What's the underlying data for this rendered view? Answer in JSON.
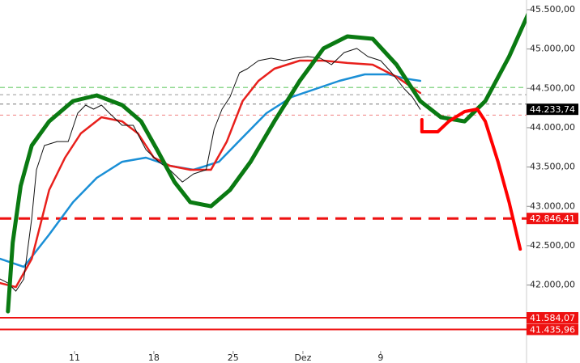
{
  "chart_data": {
    "type": "line",
    "xlim": [
      0,
      33.2
    ],
    "ylim": [
      41009,
      45623
    ],
    "xticks": [
      {
        "value": 4.7,
        "label": "11"
      },
      {
        "value": 9.7,
        "label": "18"
      },
      {
        "value": 14.7,
        "label": "25"
      },
      {
        "value": 19.1,
        "label": "Dez"
      },
      {
        "value": 24.0,
        "label": "9"
      }
    ],
    "yticks": [
      {
        "value": 45500,
        "label": "45.500,00"
      },
      {
        "value": 45000,
        "label": "45.000,00"
      },
      {
        "value": 44500,
        "label": "44.500,00"
      },
      {
        "value": 44000,
        "label": "44.000,00"
      },
      {
        "value": 43500,
        "label": "43.500,00"
      },
      {
        "value": 43000,
        "label": "43.000,00"
      },
      {
        "value": 42500,
        "label": "42.500,00"
      },
      {
        "value": 42000,
        "label": "42.000,00"
      }
    ],
    "levels": [
      {
        "value": 44510,
        "color": "#8fd88f",
        "width": 1.5,
        "dash": "6,4"
      },
      {
        "value": 44420,
        "color": "#999999",
        "width": 1,
        "dash": "4,4"
      },
      {
        "value": 44300,
        "color": "#777777",
        "width": 1,
        "dash": "4,4"
      },
      {
        "value": 44160,
        "color": "#f08080",
        "width": 1,
        "dash": "4,4"
      },
      {
        "value": 42846.41,
        "label": "42.846,41",
        "color": "#ee1111",
        "width": 3,
        "dash": "14,9"
      },
      {
        "value": 41584.07,
        "label": "41.584,07",
        "color": "#ee1111",
        "width": 2
      },
      {
        "value": 41435.96,
        "label": "41.435,96",
        "color": "#ee1111",
        "width": 2
      },
      {
        "value": 44233.74,
        "label": "44.233,74",
        "color": "#000000",
        "width": 0
      }
    ],
    "series": [
      {
        "color": "#1a8fd6",
        "width": 2.5,
        "x": [
          0,
          1.5,
          3.1,
          4.6,
          6.1,
          7.7,
          9.2,
          10.7,
          12.2,
          13.8,
          15.3,
          16.8,
          18.4,
          19.9,
          21.4,
          23.0,
          24.5,
          25.5,
          26.5
        ],
        "values": [
          42334,
          42231,
          42642,
          43053,
          43362,
          43567,
          43619,
          43516,
          43465,
          43567,
          43876,
          44184,
          44390,
          44493,
          44595,
          44678,
          44678,
          44626,
          44595
        ]
      },
      {
        "color": "#e8201c",
        "width": 2.5,
        "x": [
          0,
          1.0,
          2.0,
          3.1,
          4.1,
          5.1,
          6.4,
          7.7,
          8.7,
          9.7,
          10.7,
          12.0,
          13.3,
          14.3,
          15.3,
          16.3,
          17.3,
          18.9,
          20.4,
          21.9,
          23.5,
          25.0,
          26.5
        ],
        "values": [
          42025,
          41974,
          42334,
          43208,
          43619,
          43927,
          44133,
          44081,
          43927,
          43619,
          43516,
          43465,
          43465,
          43824,
          44338,
          44595,
          44750,
          44852,
          44852,
          44822,
          44801,
          44647,
          44441
        ]
      },
      {
        "color": "#111111",
        "width": 1,
        "x": [
          0,
          0.5,
          1.0,
          1.5,
          2.0,
          2.3,
          2.8,
          3.6,
          4.3,
          4.9,
          5.4,
          5.9,
          6.4,
          6.9,
          7.7,
          8.4,
          9.2,
          10.0,
          10.7,
          11.5,
          12.2,
          13.0,
          13.5,
          14.0,
          14.5,
          15.1,
          15.6,
          16.3,
          17.1,
          17.9,
          18.6,
          19.4,
          20.2,
          20.9,
          21.7,
          22.5,
          23.2,
          24.0,
          24.7,
          25.5,
          26.0,
          26.5
        ],
        "values": [
          42077,
          42025,
          41923,
          42077,
          42848,
          43465,
          43773,
          43824,
          43824,
          44184,
          44287,
          44236,
          44287,
          44184,
          44030,
          44030,
          43722,
          43567,
          43465,
          43310,
          43413,
          43465,
          43979,
          44236,
          44390,
          44698,
          44750,
          44852,
          44883,
          44852,
          44883,
          44904,
          44883,
          44801,
          44955,
          45007,
          44904,
          44852,
          44698,
          44493,
          44390,
          44234
        ]
      },
      {
        "color": "#0a7a12",
        "width": 5,
        "x": [
          0.5,
          0.8,
          1.3,
          2.0,
          3.1,
          4.6,
          6.1,
          7.7,
          8.9,
          9.9,
          11.0,
          12.0,
          13.3,
          14.5,
          15.8,
          17.3,
          18.9,
          20.4,
          21.9,
          23.5,
          25.0,
          26.5,
          27.8,
          29.3,
          30.6,
          32.1,
          33.7
        ],
        "values": [
          41666,
          42539,
          43259,
          43773,
          44081,
          44338,
          44410,
          44287,
          44081,
          43722,
          43310,
          43053,
          43002,
          43208,
          43567,
          44081,
          44595,
          45007,
          45161,
          45130,
          44801,
          44338,
          44133,
          44081,
          44338,
          44904,
          45623
        ]
      },
      {
        "color": "#ff0000",
        "width": 4,
        "x": [
          26.6,
          26.6,
          27.6,
          28.3,
          29.3,
          30.1,
          30.6,
          31.4,
          32.1,
          32.8
        ],
        "values": [
          44102,
          43948,
          43948,
          44081,
          44205,
          44236,
          44081,
          43567,
          43053,
          42457
        ]
      }
    ]
  }
}
